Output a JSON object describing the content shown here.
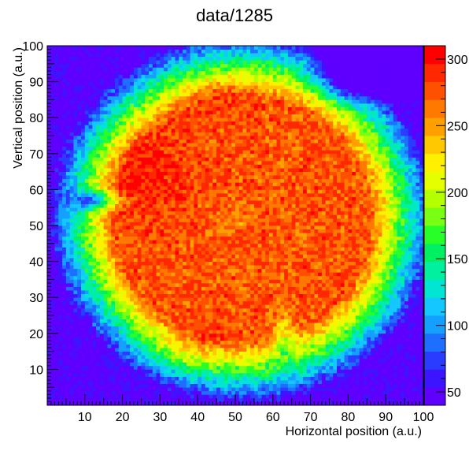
{
  "chart_data": {
    "type": "heatmap",
    "title": "data/1285",
    "xlabel": "Horizontal position (a.u.)",
    "ylabel": "Vertical position (a.u.)",
    "xlim": [
      0,
      100
    ],
    "ylim": [
      0,
      100
    ],
    "x_ticks": [
      "10",
      "20",
      "30",
      "40",
      "50",
      "60",
      "70",
      "80",
      "90",
      "100"
    ],
    "y_ticks": [
      "10",
      "20",
      "30",
      "40",
      "50",
      "60",
      "70",
      "80",
      "90",
      "100"
    ],
    "colorbar": {
      "range": [
        40,
        310
      ],
      "ticks": [
        "50",
        "100",
        "150",
        "200",
        "250",
        "300"
      ],
      "palette": [
        "#5f00ff",
        "#3c14ff",
        "#2a3cff",
        "#1e6eff",
        "#14a0ff",
        "#14c8ff",
        "#00e6d2",
        "#00f0a0",
        "#00f064",
        "#28ff28",
        "#78ff14",
        "#b4ff00",
        "#e6ff00",
        "#fff000",
        "#ffc800",
        "#ffa000",
        "#ff7800",
        "#ff5000",
        "#ff2800",
        "#ff0000"
      ]
    },
    "bins": {
      "nx": 100,
      "ny": 100
    },
    "description": "Circular beam-spot intensity map; sensor disk centred near (52,52) with radius ~48. Counts ~270-300 in the interior, falling through green/cyan to ~50 at the rim; low-count notch in the upper-right (x~80-95, y~85-100), a green/yellow feature near (15,57) and a dip near (62,20)."
  }
}
